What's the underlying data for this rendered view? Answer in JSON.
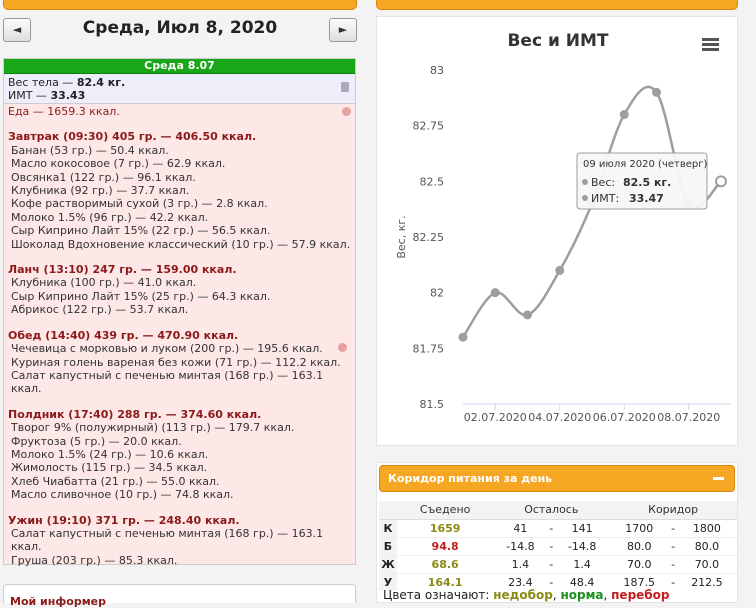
{
  "header": {
    "prev_btn": "◄",
    "next_btn": "►",
    "date_title": "Среда, Июл 8, 2020"
  },
  "day_panel": {
    "green_header": "Среда 8.07",
    "weight_label": "Вес тела — ",
    "weight_value": "82.4 кг.",
    "bmi_label": "ИМТ — ",
    "bmi_value": "33.43",
    "food_total": "Еда — 1659.3 ккал.",
    "meals": [
      {
        "title": "Завтрак (09:30) 405 гр. — 406.50 ккал.",
        "items": [
          "Банан (53 гр.) — 50.4 ккал.",
          "Масло кокосовое (7 гр.) — 62.9 ккал.",
          "Овсянка1 (122 гр.) — 96.1 ккал.",
          "Клубника (92 гр.) — 37.7 ккал.",
          "Кофе растворимый сухой (3 гр.) — 2.8 ккал.",
          "Молоко 1.5% (96 гр.) — 42.2 ккал.",
          "Сыр Киприно Лайт 15% (22 гр.) — 56.5 ккал.",
          "Шоколад Вдохновение классический (10 гр.) — 57.9 ккал."
        ]
      },
      {
        "title": "Ланч (13:10) 247 гр. — 159.00 ккал.",
        "items": [
          "Клубника (100 гр.) — 41.0 ккал.",
          "Сыр Киприно Лайт 15% (25 гр.) — 64.3 ккал.",
          "Абрикос (122 гр.) — 53.7 ккал."
        ]
      },
      {
        "title": "Обед (14:40) 439 гр. — 470.90 ккал.",
        "items": [
          "Чечевица с морковью и луком (200 гр.) — 195.6 ккал.",
          "Куриная голень вареная без кожи (71 гр.) — 112.2 ккал.",
          "Салат капустный с печенью минтая (168 гр.) — 163.1 ккал."
        ]
      },
      {
        "title": "Полдник (17:40) 288 гр. — 374.60 ккал.",
        "items": [
          "Творог 9% (полужирный) (113 гр.) — 179.7 ккал.",
          "Фруктоза (5 гр.) — 20.0 ккал.",
          "Молоко 1.5% (24 гр.) — 10.6 ккал.",
          "Жимолость (115 гр.) — 34.5 ккал.",
          "Хлеб Чиабатта (21 гр.) — 55.0 ккал.",
          "Масло сливочное (10 гр.) — 74.8 ккал."
        ]
      },
      {
        "title": "Ужин (19:10) 371 гр. — 248.40 ккал.",
        "items": [
          "Салат капустный с печенью минтая (168 гр.) — 163.1 ккал.",
          "Груша (203 гр.) — 85.3 ккал."
        ]
      }
    ]
  },
  "bottom_left_title": "Мой информер",
  "chart_data": {
    "type": "line",
    "title": "Вес и ИМТ",
    "ylabel": "Вес, кг.",
    "ylim": [
      81.5,
      83
    ],
    "yticks": [
      "83",
      "82.75",
      "82.5",
      "82.25",
      "82",
      "81.75",
      "81.5"
    ],
    "x": [
      "01.07",
      "02.07",
      "03.07",
      "04.07",
      "05.07",
      "06.07",
      "07.07",
      "08.07",
      "09.07"
    ],
    "xtick_labels": [
      "02.07.2020",
      "04.07.2020",
      "06.07.2020",
      "08.07.2020"
    ],
    "series": [
      {
        "values": [
          81.8,
          82.0,
          81.9,
          82.1,
          82.4,
          82.8,
          82.9,
          82.4,
          82.5
        ]
      }
    ],
    "line_color": "#9e9e9e",
    "tooltip": {
      "date": "09 июля 2020 (четверг)",
      "weight_label": "Вес: ",
      "weight_value": "82.5 кг.",
      "bmi_label": "ИМТ: ",
      "bmi_value": "33.47"
    }
  },
  "corridor": {
    "title": "Коридор питания за день",
    "headers": [
      "Съедено",
      "Осталось",
      "Коридор"
    ],
    "rows": [
      {
        "label": "К",
        "eaten": "1659",
        "eaten_class": "under",
        "left_a": "41",
        "left_b": "141",
        "cor_a": "1700",
        "cor_b": "1800"
      },
      {
        "label": "Б",
        "eaten": "94.8",
        "eaten_class": "over",
        "left_a": "-14.8",
        "left_b": "-14.8",
        "cor_a": "80.0",
        "cor_b": "80.0"
      },
      {
        "label": "Ж",
        "eaten": "68.6",
        "eaten_class": "under",
        "left_a": "1.4",
        "left_b": "1.4",
        "cor_a": "70.0",
        "cor_b": "70.0"
      },
      {
        "label": "У",
        "eaten": "164.1",
        "eaten_class": "under",
        "left_a": "23.4",
        "left_b": "48.4",
        "cor_a": "187.5",
        "cor_b": "212.5"
      }
    ],
    "dash": "-",
    "legend_prefix": "Цвета означают: ",
    "legend_under": "недобор",
    "legend_norm": "норма",
    "legend_over": "перебор",
    "comma": ", "
  }
}
